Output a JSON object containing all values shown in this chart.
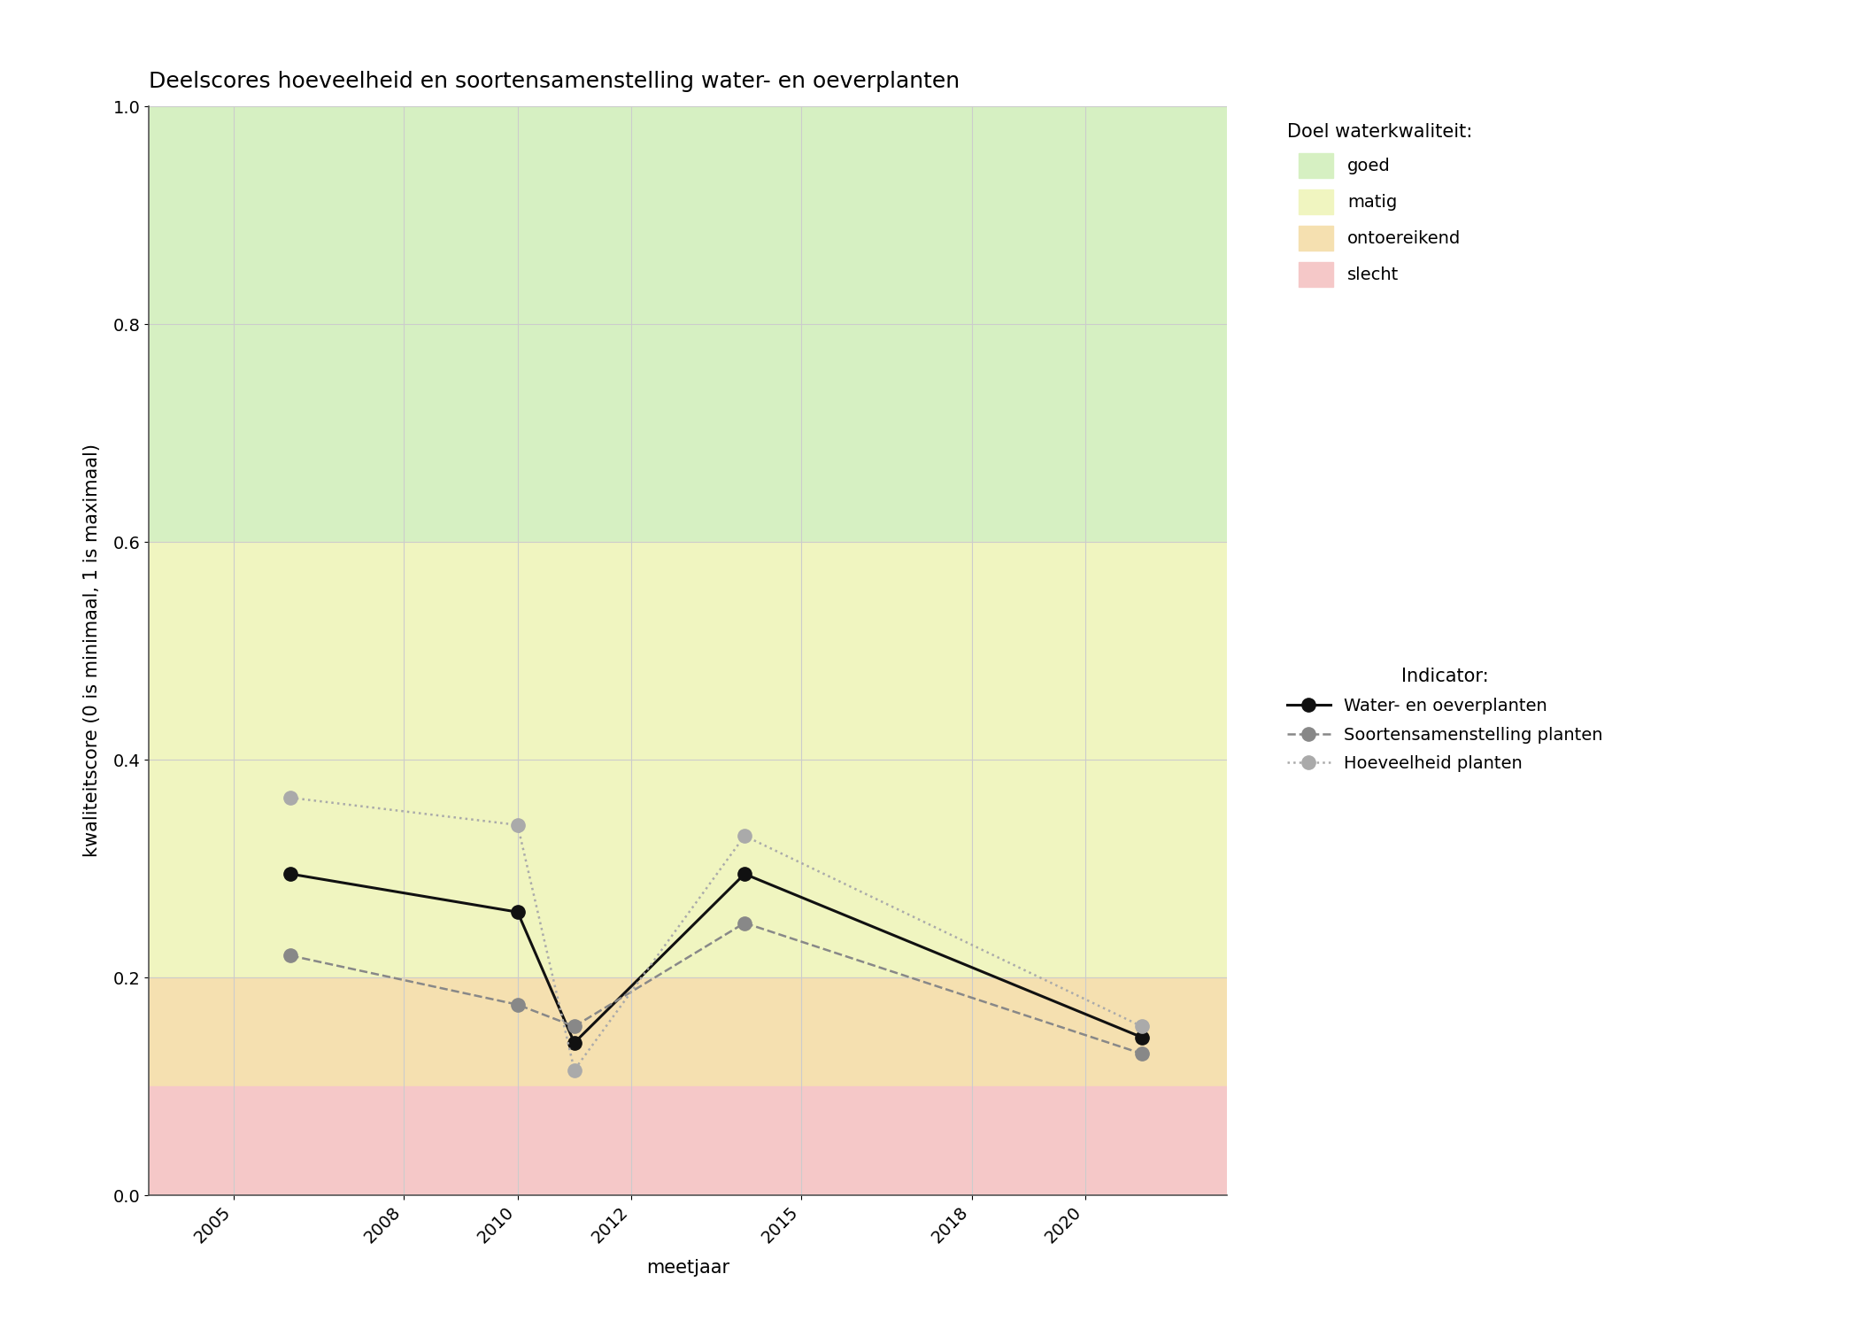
{
  "title": "Deelscores hoeveelheid en soortensamenstelling water- en oeverplanten",
  "xlabel": "meetjaar",
  "ylabel": "kwaliteitscore (0 is minimaal, 1 is maximaal)",
  "xlim": [
    2003.5,
    2022.5
  ],
  "ylim": [
    0.0,
    1.0
  ],
  "xticks": [
    2005,
    2008,
    2010,
    2012,
    2015,
    2018,
    2020
  ],
  "yticks": [
    0.0,
    0.2,
    0.4,
    0.6,
    0.8,
    1.0
  ],
  "bg_zones": [
    {
      "ymin": 0.6,
      "ymax": 1.0,
      "color": "#d6f0c2",
      "label": "goed"
    },
    {
      "ymin": 0.2,
      "ymax": 0.6,
      "color": "#f0f5c0",
      "label": "matig"
    },
    {
      "ymin": 0.1,
      "ymax": 0.2,
      "color": "#f5e0b0",
      "label": "ontoereikend"
    },
    {
      "ymin": 0.0,
      "ymax": 0.1,
      "color": "#f5c8c8",
      "label": "slecht"
    }
  ],
  "series": [
    {
      "name": "Water- en oeverplanten",
      "years": [
        2006,
        2010,
        2011,
        2014,
        2021
      ],
      "values": [
        0.295,
        0.26,
        0.14,
        0.295,
        0.145
      ],
      "color": "#111111",
      "linestyle": "solid",
      "linewidth": 2.2,
      "markersize": 11,
      "marker": "o",
      "markerfacecolor": "#111111"
    },
    {
      "name": "Soortensamenstelling planten",
      "years": [
        2006,
        2010,
        2011,
        2014,
        2021
      ],
      "values": [
        0.22,
        0.175,
        0.155,
        0.25,
        0.13
      ],
      "color": "#888888",
      "linestyle": "dashed",
      "linewidth": 1.8,
      "markersize": 11,
      "marker": "o",
      "markerfacecolor": "#888888"
    },
    {
      "name": "Hoeveelheid planten",
      "years": [
        2006,
        2010,
        2011,
        2014,
        2021
      ],
      "values": [
        0.365,
        0.34,
        0.115,
        0.33,
        0.155
      ],
      "color": "#aaaaaa",
      "linestyle": "dotted",
      "linewidth": 1.8,
      "markersize": 11,
      "marker": "o",
      "markerfacecolor": "#aaaaaa"
    }
  ],
  "legend_title_quality": "Doel waterkwaliteit:",
  "legend_title_indicator": "Indicator:",
  "background_color": "#ffffff",
  "grid_color": "#cccccc",
  "title_fontsize": 18,
  "axis_label_fontsize": 15,
  "tick_fontsize": 14,
  "legend_fontsize": 14,
  "legend_title_fontsize": 15
}
